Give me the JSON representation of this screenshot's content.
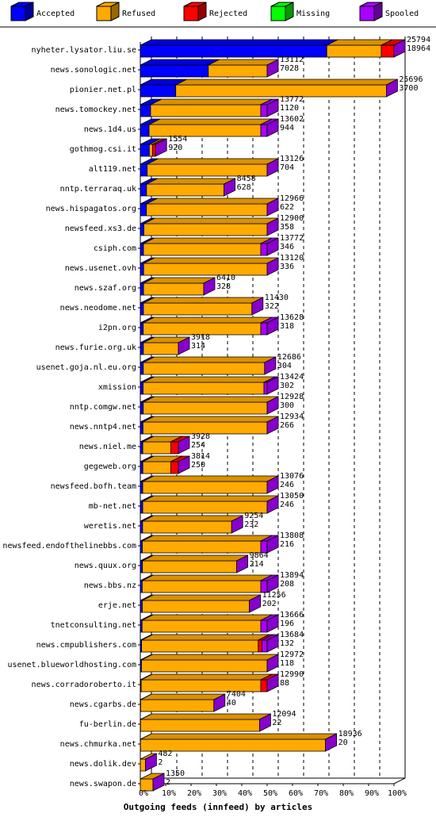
{
  "chart_data": {
    "type": "bar",
    "orientation": "horizontal",
    "stacked": true,
    "title": "",
    "xlabel": "Outgoing feeds (innfeed) by articles",
    "ylabel": "",
    "xlim": [
      0,
      100
    ],
    "x_ticks": [
      "0%",
      "10%",
      "20%",
      "30%",
      "40%",
      "50%",
      "60%",
      "70%",
      "80%",
      "90%",
      "100%"
    ],
    "grid": true,
    "legend_position": "top",
    "series": [
      {
        "name": "Accepted",
        "color": "#0000ff"
      },
      {
        "name": "Refused",
        "color": "#ffaa00"
      },
      {
        "name": "Rejected",
        "color": "#ff0000"
      },
      {
        "name": "Missing",
        "color": "#00ff00"
      },
      {
        "name": "Spooled",
        "color": "#aa00ff"
      }
    ],
    "rows": [
      {
        "name": "nyheter.lysator.liu.se",
        "offered": "25794",
        "accepted": "18964",
        "pct": [
          73.5,
          21.5,
          5.0,
          0,
          0
        ],
        "spool": 5
      },
      {
        "name": "news.sonologic.net",
        "offered": "13112",
        "accepted": "7028",
        "pct": [
          53.6,
          46.4,
          0,
          0,
          0
        ],
        "spool": 5
      },
      {
        "name": "pionier.net.pl",
        "offered": "25696",
        "accepted": "3700",
        "pct": [
          14.4,
          85.6,
          0,
          0,
          0
        ],
        "spool": 5
      },
      {
        "name": "news.tomockey.net",
        "offered": "13772",
        "accepted": "1120",
        "pct": [
          8.1,
          86.9,
          0,
          0,
          5.0
        ],
        "spool": 5
      },
      {
        "name": "news.1d4.us",
        "offered": "13602",
        "accepted": "944",
        "pct": [
          6.9,
          88.1,
          0,
          0,
          5.0
        ],
        "spool": 5
      },
      {
        "name": "gothmog.csi.it",
        "offered": "1554",
        "accepted": "920",
        "pct": [
          59.2,
          20.8,
          20.0,
          0,
          0
        ],
        "spool": 5
      },
      {
        "name": "alt119.net",
        "offered": "13126",
        "accepted": "704",
        "pct": [
          5.4,
          94.6,
          0,
          0,
          0
        ],
        "spool": 5
      },
      {
        "name": "nntp.terraraq.uk",
        "offered": "8458",
        "accepted": "628",
        "pct": [
          7.4,
          92.6,
          0,
          0,
          0
        ],
        "spool": 5
      },
      {
        "name": "news.hispagatos.org",
        "offered": "12966",
        "accepted": "622",
        "pct": [
          4.8,
          95.2,
          0,
          0,
          0
        ],
        "spool": 5
      },
      {
        "name": "newsfeed.xs3.de",
        "offered": "12900",
        "accepted": "358",
        "pct": [
          2.8,
          97.2,
          0,
          0,
          0
        ],
        "spool": 5
      },
      {
        "name": "csiph.com",
        "offered": "13772",
        "accepted": "346",
        "pct": [
          2.5,
          92.5,
          0,
          0,
          5.0
        ],
        "spool": 5
      },
      {
        "name": "news.usenet.ovh",
        "offered": "13120",
        "accepted": "336",
        "pct": [
          2.6,
          97.4,
          0,
          0,
          0
        ],
        "spool": 5
      },
      {
        "name": "news.szaf.org",
        "offered": "6410",
        "accepted": "328",
        "pct": [
          5.1,
          94.9,
          0,
          0,
          0
        ],
        "spool": 5
      },
      {
        "name": "news.neodome.net",
        "offered": "11430",
        "accepted": "322",
        "pct": [
          2.8,
          97.2,
          0,
          0,
          0
        ],
        "spool": 5
      },
      {
        "name": "i2pn.org",
        "offered": "13628",
        "accepted": "318",
        "pct": [
          2.3,
          92.7,
          0,
          0,
          5.0
        ],
        "spool": 5
      },
      {
        "name": "news.furie.org.uk",
        "offered": "3918",
        "accepted": "314",
        "pct": [
          8.0,
          92.0,
          0,
          0,
          0
        ],
        "spool": 5
      },
      {
        "name": "usenet.goja.nl.eu.org",
        "offered": "12686",
        "accepted": "304",
        "pct": [
          2.4,
          97.6,
          0,
          0,
          0
        ],
        "spool": 5
      },
      {
        "name": "xmission",
        "offered": "13424",
        "accepted": "302",
        "pct": [
          2.2,
          95.3,
          0,
          0,
          2.5
        ],
        "spool": 5
      },
      {
        "name": "nntp.comgw.net",
        "offered": "12928",
        "accepted": "300",
        "pct": [
          2.3,
          97.7,
          0,
          0,
          0
        ],
        "spool": 5
      },
      {
        "name": "news.nntp4.net",
        "offered": "12934",
        "accepted": "266",
        "pct": [
          2.1,
          97.9,
          0,
          0,
          0
        ],
        "spool": 5
      },
      {
        "name": "news.niel.me",
        "offered": "3928",
        "accepted": "254",
        "pct": [
          6.5,
          73.5,
          20.0,
          0,
          0
        ],
        "spool": 5
      },
      {
        "name": "gegeweb.org",
        "offered": "3814",
        "accepted": "250",
        "pct": [
          6.6,
          73.4,
          20.0,
          0,
          0
        ],
        "spool": 5
      },
      {
        "name": "newsfeed.bofh.team",
        "offered": "13076",
        "accepted": "246",
        "pct": [
          1.9,
          98.1,
          0,
          0,
          0
        ],
        "spool": 5
      },
      {
        "name": "mb-net.net",
        "offered": "13050",
        "accepted": "246",
        "pct": [
          1.9,
          98.1,
          0,
          0,
          0
        ],
        "spool": 5
      },
      {
        "name": "weretis.net",
        "offered": "9254",
        "accepted": "232",
        "pct": [
          2.5,
          97.5,
          0,
          0,
          0
        ],
        "spool": 5
      },
      {
        "name": "newsfeed.endofthelinebbs.com",
        "offered": "13808",
        "accepted": "216",
        "pct": [
          1.6,
          93.4,
          0,
          0,
          5.0
        ],
        "spool": 5
      },
      {
        "name": "news.quux.org",
        "offered": "9864",
        "accepted": "214",
        "pct": [
          2.2,
          97.8,
          0,
          0,
          0
        ],
        "spool": 5
      },
      {
        "name": "news.bbs.nz",
        "offered": "13894",
        "accepted": "208",
        "pct": [
          1.5,
          93.5,
          0,
          0,
          5.0
        ],
        "spool": 5
      },
      {
        "name": "erje.net",
        "offered": "11256",
        "accepted": "202",
        "pct": [
          1.8,
          98.2,
          0,
          0,
          0
        ],
        "spool": 5
      },
      {
        "name": "tnetconsulting.net",
        "offered": "13666",
        "accepted": "196",
        "pct": [
          1.4,
          93.6,
          0,
          0,
          5.0
        ],
        "spool": 5
      },
      {
        "name": "news.cmpublishers.com",
        "offered": "13684",
        "accepted": "132",
        "pct": [
          1.0,
          92.0,
          3.0,
          0,
          4.0
        ],
        "spool": 5
      },
      {
        "name": "usenet.blueworldhosting.com",
        "offered": "12972",
        "accepted": "118",
        "pct": [
          0.9,
          99.1,
          0,
          0,
          0
        ],
        "spool": 5
      },
      {
        "name": "news.corradoroberto.it",
        "offered": "12990",
        "accepted": "88",
        "pct": [
          0.7,
          94.3,
          5.0,
          0,
          0
        ],
        "spool": 5
      },
      {
        "name": "news.cgarbs.de",
        "offered": "7404",
        "accepted": "40",
        "pct": [
          0.5,
          99.5,
          0,
          0,
          0
        ],
        "spool": 5
      },
      {
        "name": "fu-berlin.de",
        "offered": "12094",
        "accepted": "22",
        "pct": [
          0.2,
          99.8,
          0,
          0,
          0
        ],
        "spool": 5
      },
      {
        "name": "news.chmurka.net",
        "offered": "18936",
        "accepted": "20",
        "pct": [
          0.1,
          99.9,
          0,
          0,
          0
        ],
        "spool": 5
      },
      {
        "name": "news.dolik.dev",
        "offered": "482",
        "accepted": "2",
        "pct": [
          0.4,
          99.6,
          0,
          0,
          0
        ],
        "spool": 5
      },
      {
        "name": "news.swapon.de",
        "offered": "1350",
        "accepted": "2",
        "pct": [
          0.1,
          99.9,
          0,
          0,
          0
        ],
        "spool": 5
      }
    ],
    "bar_widths_pct": [
      100,
      50,
      97,
      50,
      50,
      6,
      50,
      33,
      50,
      50,
      50,
      50,
      25,
      44,
      50,
      15,
      49,
      50,
      50,
      50,
      15,
      15,
      50,
      50,
      36,
      50,
      38,
      50,
      43,
      50,
      50,
      50,
      50,
      29,
      47,
      73,
      2,
      5
    ]
  }
}
